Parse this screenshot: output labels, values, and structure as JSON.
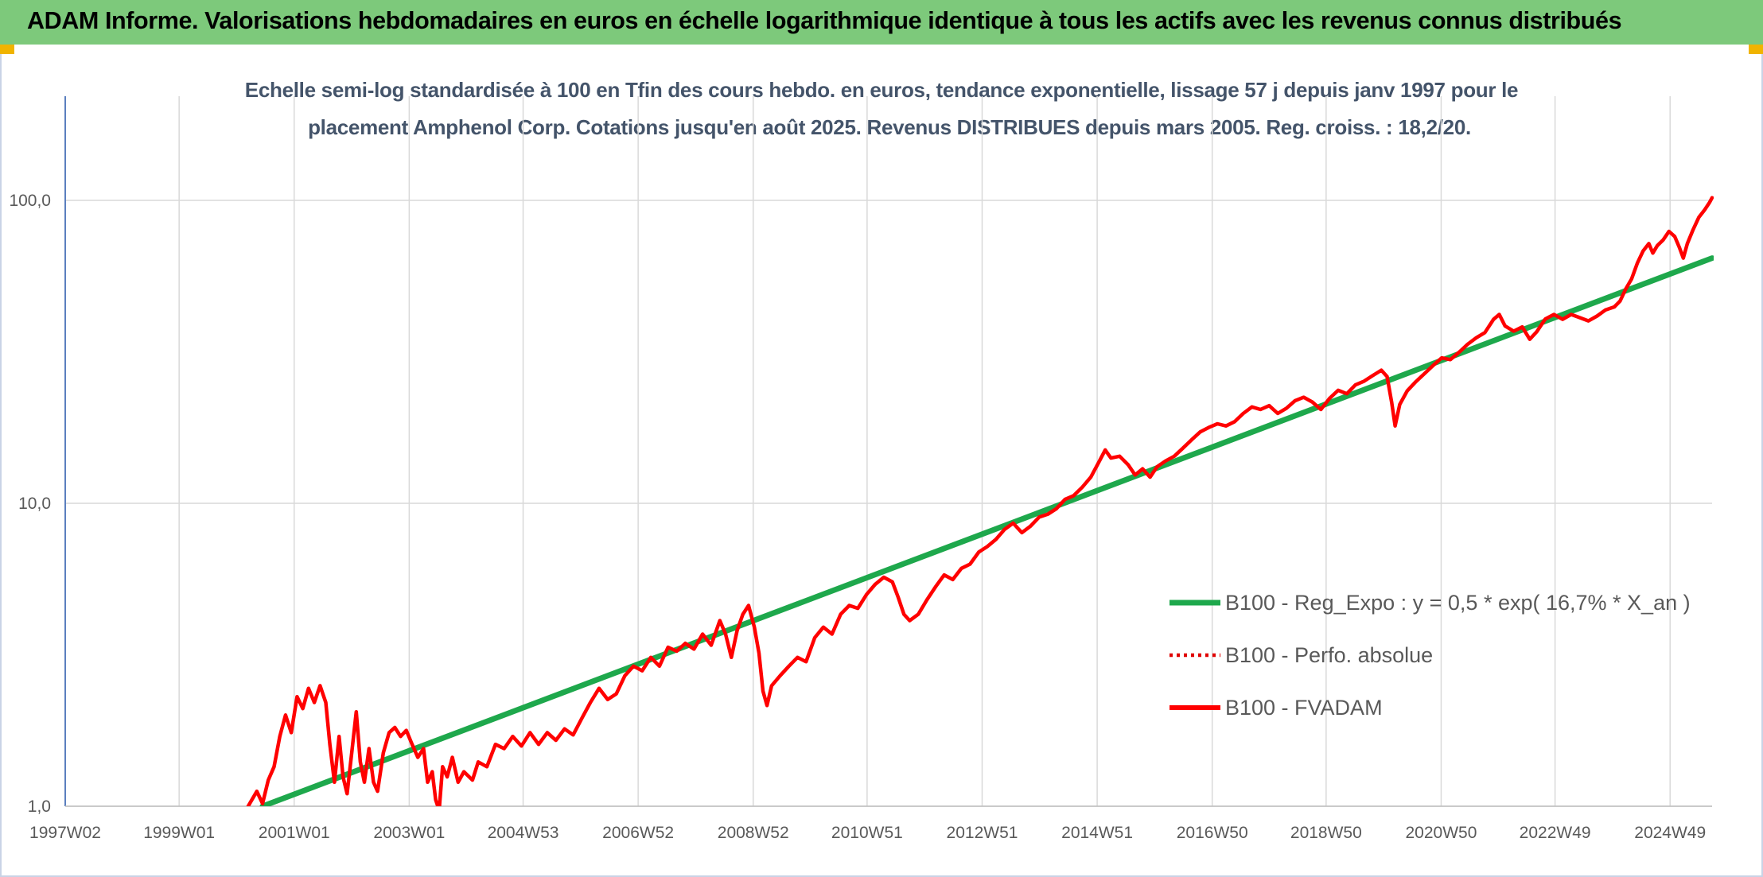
{
  "header": {
    "title": "ADAM Informe. Valorisations hebdomadaires en euros en échelle logarithmique identique à tous les actifs avec les revenus connus distribués"
  },
  "colors": {
    "header_band": "#7dc97b",
    "trend_line": "#1ea84c",
    "fvadam_line": "#ff0000",
    "perfo_line": "#e00000",
    "grid": "#d9d9d9",
    "axis": "#5b7fbf",
    "title_text": "#44546a"
  },
  "chart_data": {
    "type": "line",
    "title_line1": "Echelle semi-log standardisée à 100 en Tfin des cours hebdo. en euros, tendance exponentielle, lissage 57 j depuis janv 1997 pour le",
    "title_line2": "placement Amphenol Corp. Cotations jusqu'en août 2025. Revenus DISTRIBUES depuis mars 2005. Reg. croiss. : 18,2/20.",
    "y_scale": "log",
    "ylim": [
      1,
      100
    ],
    "y_tick_values": [
      1,
      10,
      100
    ],
    "y_tick_labels": [
      "1,0",
      "10,0",
      "100,0"
    ],
    "xlim": [
      1997.02,
      2025.65
    ],
    "x_tick_values": [
      1997.02,
      1999.0,
      2001.0,
      2003.0,
      2004.98,
      2006.98,
      2008.98,
      2010.96,
      2012.96,
      2014.96,
      2016.96,
      2018.94,
      2020.94,
      2022.92,
      2024.92
    ],
    "x_tick_labels": [
      "1997W02",
      "1999W01",
      "2001W01",
      "2003W01",
      "2004W53",
      "2006W52",
      "2008W52",
      "2010W51",
      "2012W51",
      "2014W51",
      "2016W50",
      "2018W50",
      "2020W50",
      "2022W49",
      "2024W49"
    ],
    "grid": true,
    "legend_position": "right",
    "series": [
      {
        "name": "B100 - Reg_Expo : y = 0,5 * exp( 16,7% *  X_an )",
        "style": "solid-thick",
        "color": "#1ea84c",
        "points": [
          [
            2000.45,
            1.0
          ],
          [
            2025.65,
            64.5
          ]
        ]
      },
      {
        "name": "B100 - Perfo. absolue",
        "style": "dotted",
        "color": "#e00000",
        "points": []
      },
      {
        "name": "B100 - FVADAM",
        "style": "solid",
        "color": "#ff0000",
        "points": [
          [
            2000.2,
            1.0
          ],
          [
            2000.35,
            1.12
          ],
          [
            2000.45,
            1.02
          ],
          [
            2000.55,
            1.22
          ],
          [
            2000.65,
            1.35
          ],
          [
            2000.75,
            1.7
          ],
          [
            2000.85,
            2.0
          ],
          [
            2000.95,
            1.75
          ],
          [
            2001.05,
            2.3
          ],
          [
            2001.15,
            2.1
          ],
          [
            2001.25,
            2.45
          ],
          [
            2001.35,
            2.2
          ],
          [
            2001.45,
            2.5
          ],
          [
            2001.55,
            2.2
          ],
          [
            2001.62,
            1.6
          ],
          [
            2001.7,
            1.2
          ],
          [
            2001.78,
            1.7
          ],
          [
            2001.85,
            1.25
          ],
          [
            2001.92,
            1.1
          ],
          [
            2002.0,
            1.5
          ],
          [
            2002.08,
            2.05
          ],
          [
            2002.15,
            1.4
          ],
          [
            2002.22,
            1.2
          ],
          [
            2002.3,
            1.55
          ],
          [
            2002.38,
            1.2
          ],
          [
            2002.45,
            1.12
          ],
          [
            2002.55,
            1.5
          ],
          [
            2002.65,
            1.75
          ],
          [
            2002.75,
            1.82
          ],
          [
            2002.85,
            1.7
          ],
          [
            2002.95,
            1.78
          ],
          [
            2003.05,
            1.6
          ],
          [
            2003.15,
            1.45
          ],
          [
            2003.25,
            1.55
          ],
          [
            2003.32,
            1.2
          ],
          [
            2003.4,
            1.3
          ],
          [
            2003.46,
            1.05
          ],
          [
            2003.52,
            0.97
          ],
          [
            2003.58,
            1.35
          ],
          [
            2003.66,
            1.25
          ],
          [
            2003.75,
            1.45
          ],
          [
            2003.85,
            1.2
          ],
          [
            2003.95,
            1.3
          ],
          [
            2004.1,
            1.22
          ],
          [
            2004.2,
            1.4
          ],
          [
            2004.35,
            1.35
          ],
          [
            2004.5,
            1.6
          ],
          [
            2004.65,
            1.55
          ],
          [
            2004.8,
            1.7
          ],
          [
            2004.95,
            1.58
          ],
          [
            2005.1,
            1.75
          ],
          [
            2005.25,
            1.6
          ],
          [
            2005.4,
            1.75
          ],
          [
            2005.55,
            1.65
          ],
          [
            2005.7,
            1.8
          ],
          [
            2005.85,
            1.72
          ],
          [
            2006.0,
            1.95
          ],
          [
            2006.15,
            2.2
          ],
          [
            2006.3,
            2.45
          ],
          [
            2006.45,
            2.25
          ],
          [
            2006.6,
            2.35
          ],
          [
            2006.75,
            2.7
          ],
          [
            2006.9,
            2.9
          ],
          [
            2007.05,
            2.8
          ],
          [
            2007.2,
            3.1
          ],
          [
            2007.35,
            2.9
          ],
          [
            2007.5,
            3.35
          ],
          [
            2007.65,
            3.25
          ],
          [
            2007.8,
            3.45
          ],
          [
            2007.95,
            3.3
          ],
          [
            2008.1,
            3.7
          ],
          [
            2008.25,
            3.4
          ],
          [
            2008.4,
            4.1
          ],
          [
            2008.5,
            3.7
          ],
          [
            2008.6,
            3.1
          ],
          [
            2008.7,
            3.8
          ],
          [
            2008.8,
            4.3
          ],
          [
            2008.9,
            4.6
          ],
          [
            2009.0,
            3.9
          ],
          [
            2009.08,
            3.2
          ],
          [
            2009.15,
            2.4
          ],
          [
            2009.22,
            2.15
          ],
          [
            2009.3,
            2.5
          ],
          [
            2009.45,
            2.7
          ],
          [
            2009.6,
            2.9
          ],
          [
            2009.75,
            3.1
          ],
          [
            2009.9,
            3.0
          ],
          [
            2010.05,
            3.6
          ],
          [
            2010.2,
            3.9
          ],
          [
            2010.35,
            3.7
          ],
          [
            2010.5,
            4.3
          ],
          [
            2010.65,
            4.6
          ],
          [
            2010.8,
            4.5
          ],
          [
            2010.95,
            5.0
          ],
          [
            2011.1,
            5.4
          ],
          [
            2011.25,
            5.7
          ],
          [
            2011.4,
            5.5
          ],
          [
            2011.5,
            4.9
          ],
          [
            2011.6,
            4.3
          ],
          [
            2011.7,
            4.1
          ],
          [
            2011.85,
            4.3
          ],
          [
            2012.0,
            4.8
          ],
          [
            2012.15,
            5.3
          ],
          [
            2012.3,
            5.8
          ],
          [
            2012.45,
            5.6
          ],
          [
            2012.6,
            6.1
          ],
          [
            2012.75,
            6.3
          ],
          [
            2012.9,
            6.9
          ],
          [
            2013.05,
            7.2
          ],
          [
            2013.2,
            7.6
          ],
          [
            2013.35,
            8.2
          ],
          [
            2013.5,
            8.6
          ],
          [
            2013.65,
            8.0
          ],
          [
            2013.8,
            8.4
          ],
          [
            2013.95,
            9.0
          ],
          [
            2014.1,
            9.2
          ],
          [
            2014.25,
            9.6
          ],
          [
            2014.4,
            10.3
          ],
          [
            2014.55,
            10.6
          ],
          [
            2014.7,
            11.3
          ],
          [
            2014.85,
            12.2
          ],
          [
            2015.0,
            13.8
          ],
          [
            2015.1,
            15.0
          ],
          [
            2015.2,
            14.1
          ],
          [
            2015.35,
            14.3
          ],
          [
            2015.5,
            13.4
          ],
          [
            2015.62,
            12.4
          ],
          [
            2015.75,
            13.0
          ],
          [
            2015.88,
            12.2
          ],
          [
            2016.0,
            13.2
          ],
          [
            2016.15,
            13.8
          ],
          [
            2016.3,
            14.3
          ],
          [
            2016.45,
            15.2
          ],
          [
            2016.6,
            16.2
          ],
          [
            2016.75,
            17.2
          ],
          [
            2016.9,
            17.8
          ],
          [
            2017.05,
            18.3
          ],
          [
            2017.2,
            18.0
          ],
          [
            2017.35,
            18.6
          ],
          [
            2017.5,
            19.8
          ],
          [
            2017.65,
            20.8
          ],
          [
            2017.8,
            20.4
          ],
          [
            2017.95,
            21.0
          ],
          [
            2018.1,
            19.8
          ],
          [
            2018.25,
            20.6
          ],
          [
            2018.4,
            21.8
          ],
          [
            2018.55,
            22.4
          ],
          [
            2018.7,
            21.6
          ],
          [
            2018.85,
            20.4
          ],
          [
            2019.0,
            22.2
          ],
          [
            2019.15,
            23.6
          ],
          [
            2019.3,
            23.0
          ],
          [
            2019.45,
            24.6
          ],
          [
            2019.6,
            25.3
          ],
          [
            2019.75,
            26.4
          ],
          [
            2019.9,
            27.5
          ],
          [
            2020.0,
            26.2
          ],
          [
            2020.08,
            21.5
          ],
          [
            2020.14,
            18.0
          ],
          [
            2020.22,
            21.2
          ],
          [
            2020.35,
            23.5
          ],
          [
            2020.5,
            25.2
          ],
          [
            2020.65,
            26.8
          ],
          [
            2020.8,
            28.5
          ],
          [
            2020.95,
            30.2
          ],
          [
            2021.1,
            29.8
          ],
          [
            2021.25,
            31.5
          ],
          [
            2021.4,
            33.5
          ],
          [
            2021.55,
            35.2
          ],
          [
            2021.7,
            36.6
          ],
          [
            2021.85,
            40.5
          ],
          [
            2021.95,
            42.0
          ],
          [
            2022.05,
            38.5
          ],
          [
            2022.2,
            37.0
          ],
          [
            2022.35,
            38.2
          ],
          [
            2022.48,
            34.8
          ],
          [
            2022.6,
            36.8
          ],
          [
            2022.75,
            40.6
          ],
          [
            2022.9,
            42.0
          ],
          [
            2023.05,
            40.5
          ],
          [
            2023.2,
            42.0
          ],
          [
            2023.35,
            41.0
          ],
          [
            2023.5,
            40.0
          ],
          [
            2023.65,
            41.5
          ],
          [
            2023.8,
            43.5
          ],
          [
            2023.95,
            44.5
          ],
          [
            2024.05,
            46.5
          ],
          [
            2024.15,
            51.0
          ],
          [
            2024.25,
            55.0
          ],
          [
            2024.35,
            62.0
          ],
          [
            2024.45,
            68.0
          ],
          [
            2024.55,
            72.0
          ],
          [
            2024.62,
            67.0
          ],
          [
            2024.7,
            71.0
          ],
          [
            2024.8,
            74.0
          ],
          [
            2024.9,
            79.0
          ],
          [
            2025.0,
            76.0
          ],
          [
            2025.08,
            70.0
          ],
          [
            2025.15,
            64.5
          ],
          [
            2025.22,
            72.0
          ],
          [
            2025.32,
            80.0
          ],
          [
            2025.42,
            88.0
          ],
          [
            2025.52,
            93.0
          ],
          [
            2025.6,
            98.0
          ],
          [
            2025.65,
            102.0
          ]
        ]
      }
    ]
  }
}
